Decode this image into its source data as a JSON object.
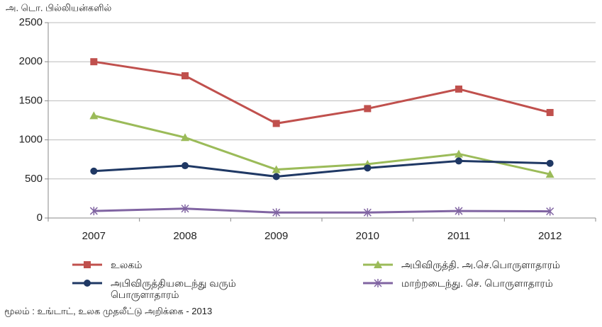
{
  "chart_data": {
    "type": "line",
    "unit_label": "அ. டொ. பில்லியன்களில்",
    "source": "மூலம் : உங்டாட், உலக முதலீட்டு அறிக்கை - 2013",
    "categories": [
      "2007",
      "2008",
      "2009",
      "2010",
      "2011",
      "2012"
    ],
    "series": [
      {
        "name": "உலகம்",
        "color": "#c0504d",
        "marker": "square",
        "values": [
          2000,
          1820,
          1210,
          1400,
          1650,
          1350
        ]
      },
      {
        "name": "அபிவிருத்தி. அ.செ.பொருளாதாரம்",
        "color": "#9bbb59",
        "marker": "triangle",
        "values": [
          1310,
          1030,
          620,
          690,
          820,
          560
        ]
      },
      {
        "name": "அபிவிருத்தியடைந்து வரும் பொருளாதாரம்",
        "color": "#1f3864",
        "marker": "circle",
        "values": [
          600,
          670,
          530,
          640,
          730,
          700
        ]
      },
      {
        "name": "மாற்றடைந்து. செ. பொருளாதாரம்",
        "color": "#8064a2",
        "marker": "star",
        "values": [
          90,
          120,
          70,
          70,
          90,
          85
        ]
      }
    ],
    "ylim": [
      0,
      2500
    ],
    "yticks": [
      0,
      500,
      1000,
      1500,
      2000,
      2500
    ],
    "grid": true
  }
}
